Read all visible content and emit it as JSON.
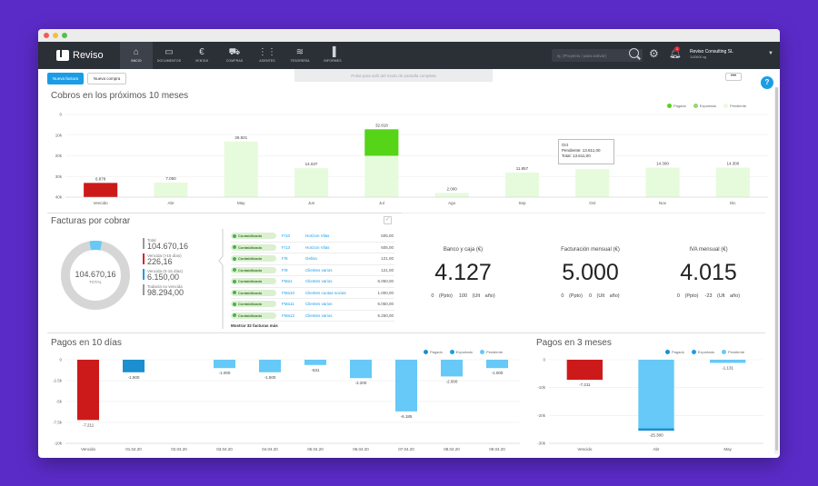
{
  "app": {
    "name": "Reviso",
    "company": "Reviso Consulting SL",
    "company_sub": "1180600 ag",
    "notification_count": "1"
  },
  "nav": [
    {
      "label": "INICIO",
      "icon": "home-icon",
      "glyph": "⌂"
    },
    {
      "label": "DOCUMENTOS",
      "icon": "folder-icon",
      "glyph": "▭"
    },
    {
      "label": "VENTAS",
      "icon": "euro-icon",
      "glyph": "€"
    },
    {
      "label": "COMPRAS",
      "icon": "truck-icon",
      "glyph": "⛟"
    },
    {
      "label": "AGENTES",
      "icon": "grid-icon",
      "glyph": "⋮⋮"
    },
    {
      "label": "TESORERÍA",
      "icon": "database-icon",
      "glyph": "≋"
    },
    {
      "label": "INFORMES",
      "icon": "chart-icon",
      "glyph": "▐"
    }
  ],
  "search": {
    "placeholder": "ej. (Proyecto / para activar)"
  },
  "actions": {
    "new_invoice": "Nueva factura",
    "new_purchase": "Nueva compra",
    "more": "•••",
    "help": "?"
  },
  "toast": "Pulsa    para salir del modo de pantalla completa",
  "cobros": {
    "title": "Cobros en los próximos 10 meses",
    "legend": [
      {
        "label": "Pagado",
        "color": "#55d418"
      },
      {
        "label": "Exportado",
        "color": "#9ad46a"
      },
      {
        "label": "Pendiente",
        "color": "#e6fbdc"
      }
    ],
    "tooltip": {
      "month": "Oct",
      "pendiente": "Pendiente: 13.611,00",
      "total": "Total: 13.611,00"
    }
  },
  "facturas": {
    "title": "Facturas por cobrar",
    "donut_value": "104.670,16",
    "donut_label": "TOTAL",
    "legend": [
      {
        "label": "Total",
        "value": "104.670,16",
        "color": "#999999"
      },
      {
        "label": "Vencida (>15 días)",
        "value": "226,16",
        "color": "#d8232a"
      },
      {
        "label": "Vencida (0-15 días)",
        "value": "6.150,00",
        "color": "#1b9de6"
      },
      {
        "label": "Todavía no vencida",
        "value": "98.294,00",
        "color": "#999999"
      }
    ],
    "rows": [
      {
        "status": "Contabilizado",
        "num": "F/10",
        "client": "Horizon Vilas",
        "amount": "605,00"
      },
      {
        "status": "Contabilizado",
        "num": "F/13",
        "client": "Horizon Vilas",
        "amount": "605,00"
      },
      {
        "status": "Contabilizado",
        "num": "F/8",
        "client": "Gelisa",
        "amount": "121,00"
      },
      {
        "status": "Contabilizado",
        "num": "F/9",
        "client": "Clientes varios",
        "amount": "121,00"
      },
      {
        "status": "Contabilizado",
        "num": "FMa1",
        "client": "Clientes varios",
        "amount": "6.050,00"
      },
      {
        "status": "Contabilizado",
        "num": "FMa10",
        "client": "Clientes cuotas socias",
        "amount": "1.000,00"
      },
      {
        "status": "Contabilizado",
        "num": "FMa11",
        "client": "Clientes varios",
        "amount": "6.050,00"
      },
      {
        "status": "Contabilizado",
        "num": "FMa12",
        "client": "Clientes varios",
        "amount": "6.250,00"
      }
    ],
    "show_more": "Mostrar 32 facturas más"
  },
  "kpis": [
    {
      "label": "Banco y caja (€)",
      "value": "4.127",
      "sub1": "0 (Ppto)",
      "sub2": "100 (Ult año)"
    },
    {
      "label": "Facturación mensual (€)",
      "value": "5.000",
      "sub1": "0 (Ppto)",
      "sub2": "0 (Ult año)"
    },
    {
      "label": "IVA mensual (€)",
      "value": "4.015",
      "sub1": "0 (Ppto)",
      "sub2": "-23 (Ult año)"
    }
  ],
  "pagos10": {
    "title": "Pagos en 10 días",
    "legend": [
      {
        "label": "Pagado",
        "color": "#1b8fd0"
      },
      {
        "label": "Exportado",
        "color": "#1b9de6"
      },
      {
        "label": "Pendiente",
        "color": "#66c9f7"
      }
    ]
  },
  "pagos3": {
    "title": "Pagos en 3 meses",
    "legend": [
      {
        "label": "Pagado",
        "color": "#1b8fd0"
      },
      {
        "label": "Exportado",
        "color": "#1b9de6"
      },
      {
        "label": "Pendiente",
        "color": "#66c9f7"
      }
    ]
  },
  "chart_data": [
    {
      "type": "bar",
      "title": "Cobros en los próximos 10 meses",
      "categories": [
        "Vencido",
        "Abr",
        "May",
        "Jun",
        "Jul",
        "Ago",
        "Sep",
        "Oct",
        "Nov",
        "Dic"
      ],
      "values": [
        6878,
        7050,
        26921,
        14037,
        32818,
        2000,
        11857,
        13611,
        14300,
        14300
      ],
      "labels": [
        "6.878",
        "7.050",
        "26.921",
        "14.037",
        "32.818",
        "2.000",
        "11.857",
        "",
        "14.300",
        "14.300"
      ],
      "paid": [
        0,
        0,
        0,
        0,
        20000,
        0,
        0,
        0,
        0,
        0
      ],
      "yticks": [
        "0",
        "10k",
        "20k",
        "30k",
        "40k"
      ],
      "ylim": [
        0,
        40000
      ]
    },
    {
      "type": "bar",
      "title": "Pagos en 10 días",
      "categories": [
        "Vencido",
        "01.04.20",
        "02.04.20",
        "03.04.20",
        "04.04.20",
        "05.04.20",
        "06.04.20",
        "07.04.20",
        "08.04.20",
        "09.04.20"
      ],
      "values": [
        -7211,
        -1500,
        0,
        -1000,
        -1500,
        -631,
        -2200,
        -6185,
        -2000,
        -1000
      ],
      "labels": [
        "-7.211",
        "-1.500",
        "",
        "-1.000",
        "-1.500",
        "-631",
        "-2.200",
        "-6.185",
        "-2.000",
        "-1.000"
      ],
      "yticks": [
        "0",
        "-2.5k",
        "-5k",
        "-7.5k",
        "-10k"
      ],
      "ylim": [
        -10000,
        0
      ]
    },
    {
      "type": "bar",
      "title": "Pagos en 3 meses",
      "categories": [
        "Vencido",
        "Abr",
        "May"
      ],
      "values": [
        -7211,
        -25300,
        -1131
      ],
      "labels": [
        "-7.211",
        "-25.300",
        "-1.131"
      ],
      "yticks": [
        "0",
        "-10k",
        "-20k",
        "-30k"
      ],
      "ylim": [
        -30000,
        0
      ]
    }
  ]
}
